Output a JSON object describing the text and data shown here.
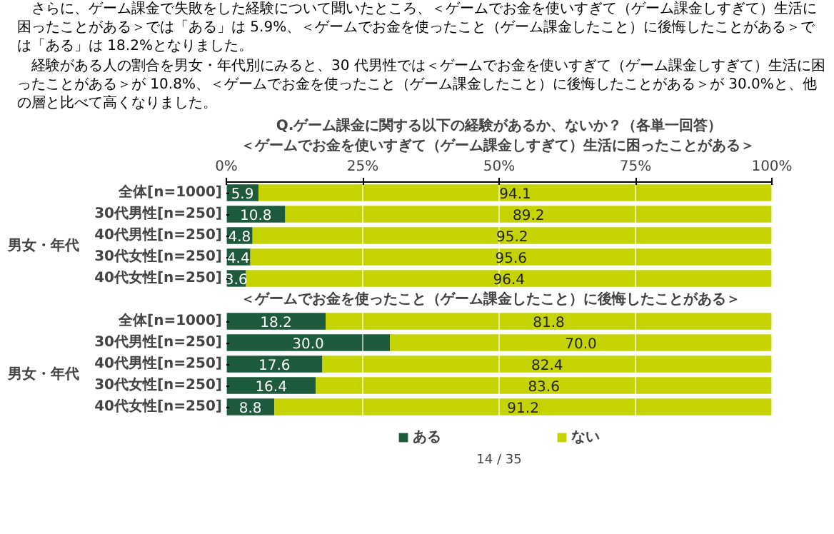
{
  "chart_data": [
    {
      "type": "bar",
      "orientation": "horizontal",
      "stacked": true,
      "title": "Q.ゲーム課金に関する以下の経験があるか、ないか？（各単一回答）",
      "subtitle": "＜ゲームでお金を使いすぎて（ゲーム課金しすぎて）生活に困ったことがある＞",
      "ylabel": "男女・年代",
      "annotations": [
        "さらに、ゲーム課金で失敗をした経験について聞いたところ、＜ゲームでお金を使いすぎて（ゲーム課金しすぎて）生活に困ったことがある＞では「ある」は 5.9%、＜ゲームでお金を使ったこと（ゲーム課金したこと）に後悔したことがある＞では「ある」は 18.2%となりました。",
        "経験がある人の割合を男女・年代別にみると、30 代男性では＜ゲームでお金を使いすぎて（ゲーム課金しすぎて）生活に困ったことがある＞が 10.8%、＜ゲームでお金を使ったこと（ゲーム課金したこと）に後悔したことがある＞が 30.0%と、他の層と比べて高くなりました。"
      ],
      "categories": [
        "全体[n=1000]",
        "30代男性[n=250]",
        "40代男性[n=250]",
        "30代女性[n=250]",
        "40代女性[n=250]"
      ],
      "series": [
        {
          "color": "#1e5a3c",
          "values": [
            5.9,
            10.8,
            4.8,
            4.4,
            3.6
          ]
        },
        {
          "color": "#c5d400",
          "values": [
            94.1,
            89.2,
            95.2,
            95.6,
            96.4
          ]
        }
      ],
      "xlim": [
        0,
        100
      ],
      "xticks": [
        {
          "value": 0,
          "label": "0%"
        },
        {
          "value": 25,
          "label": "25%"
        },
        {
          "value": 50,
          "label": "50%"
        },
        {
          "value": 75,
          "label": "75%"
        },
        {
          "value": 100,
          "label": "100%"
        }
      ],
      "grid": "x",
      "data_labels": true,
      "legend": false
    },
    {
      "type": "bar",
      "orientation": "horizontal",
      "stacked": true,
      "subtitle": "＜ゲームでお金を使ったこと（ゲーム課金したこと）に後悔したことがある＞",
      "ylabel": "男女・年代",
      "annotations": [
        "14 / 35"
      ],
      "categories": [
        "全体[n=1000]",
        "30代男性[n=250]",
        "40代男性[n=250]",
        "30代女性[n=250]",
        "40代女性[n=250]"
      ],
      "series": [
        {
          "name": "ある",
          "color": "#1e5a3c",
          "values": [
            18.2,
            30,
            17.6,
            16.4,
            8.8
          ],
          "value_labels": [
            "18.2",
            "30.0",
            "17.6",
            "16.4",
            "8.8"
          ]
        },
        {
          "name": "ない",
          "color": "#c5d400",
          "values": [
            81.8,
            70,
            82.4,
            83.6,
            91.2
          ],
          "value_labels": [
            "81.8",
            "70.0",
            "82.4",
            "83.6",
            "91.2"
          ]
        }
      ],
      "xlim": [
        0,
        100
      ],
      "xticks": [
        0,
        25,
        50,
        75,
        100
      ],
      "tick_labels": "y",
      "grid": "x",
      "legend": "bottom"
    }
  ]
}
